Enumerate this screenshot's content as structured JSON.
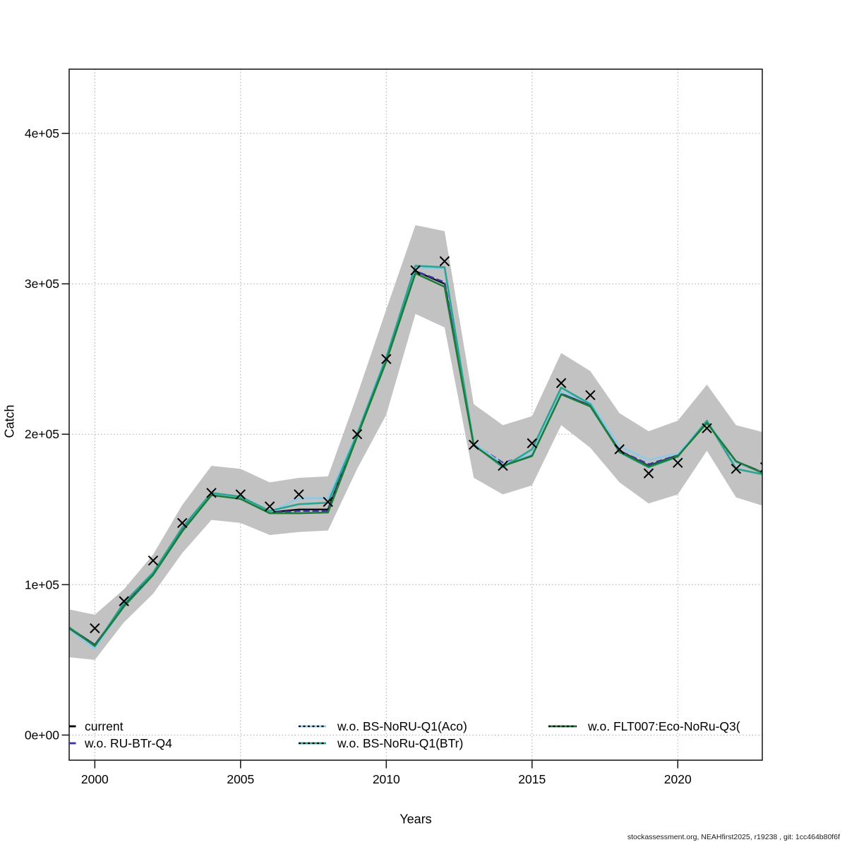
{
  "figure": {
    "ylabel": "Catch",
    "xlabel": "Years",
    "footer": "stockassessment.org, NEAHfirst2025, r19238 , git: 1cc464b80f6f",
    "background": "#ffffff"
  },
  "chart_data": {
    "type": "line",
    "title": "",
    "xlabel": "Years",
    "ylabel": "Catch",
    "xlim": [
      1999.12,
      2022.9
    ],
    "ylim": [
      -16700,
      442700
    ],
    "grid": true,
    "grid_color": "#a9a9a9",
    "band_color": "#c2c2c2",
    "box_color": "#1f1f1f",
    "xticks": [
      {
        "label": "2000",
        "value": 2000
      },
      {
        "label": "2005",
        "value": 2005
      },
      {
        "label": "2010",
        "value": 2010
      },
      {
        "label": "2015",
        "value": 2015
      },
      {
        "label": "2020",
        "value": 2020
      }
    ],
    "yticks": [
      {
        "label": "0e+00",
        "value": 0
      },
      {
        "label": "1e+05",
        "value": 100000
      },
      {
        "label": "2e+05",
        "value": 200000
      },
      {
        "label": "3e+05",
        "value": 300000
      },
      {
        "label": "4e+05",
        "value": 400000
      }
    ],
    "years": [
      1999,
      2000,
      2001,
      2002,
      2003,
      2004,
      2005,
      2006,
      2007,
      2008,
      2009,
      2010,
      2011,
      2012,
      2013,
      2014,
      2015,
      2016,
      2017,
      2018,
      2019,
      2020,
      2021,
      2022,
      2023
    ],
    "band": {
      "upper": [
        84000,
        80000,
        97000,
        120000,
        153000,
        179000,
        177000,
        168000,
        171000,
        172000,
        226000,
        283000,
        339000,
        335000,
        220000,
        206000,
        212000,
        254000,
        242000,
        214000,
        202000,
        209000,
        233000,
        206000,
        201000
      ],
      "lower": [
        52000,
        50000,
        75000,
        94000,
        121000,
        143000,
        141000,
        133000,
        135000,
        136000,
        177000,
        213000,
        280000,
        271000,
        171000,
        160000,
        166000,
        206000,
        191000,
        168000,
        154000,
        160000,
        189000,
        158000,
        152000
      ]
    },
    "obs": {
      "marker": "x",
      "color": "#000000",
      "years": [
        2000,
        2001,
        2002,
        2003,
        2004,
        2005,
        2006,
        2007,
        2008,
        2009,
        2010,
        2011,
        2012,
        2013,
        2014,
        2015,
        2016,
        2017,
        2018,
        2019,
        2020,
        2021,
        2022,
        2023
      ],
      "values": [
        71000,
        89000,
        116000,
        141000,
        161000,
        160000,
        152000,
        160000,
        155000,
        200000,
        250000,
        309000,
        315000,
        193000,
        179000,
        194000,
        234000,
        226000,
        190000,
        174000,
        181000,
        204000,
        177000,
        178000
      ]
    },
    "series": [
      {
        "label": "current",
        "color": "#000000",
        "sample": "solid",
        "values": [
          73000,
          60000,
          86000,
          107000,
          136000,
          160000,
          157500,
          148000,
          150000,
          150000,
          200000,
          249000,
          308500,
          300000,
          193000,
          180000,
          186000,
          227000,
          219000,
          189000,
          179000,
          186000,
          208000,
          182000,
          174000
        ]
      },
      {
        "label": "w.o. RU-BTr-Q4",
        "color": "#3a35a0",
        "sample": "solid",
        "values": [
          73000,
          60000,
          86000,
          107000,
          136000,
          160000,
          157500,
          148000,
          149000,
          149000,
          200000,
          249000,
          308500,
          301000,
          193500,
          181000,
          186000,
          227000,
          219000,
          189000,
          180000,
          186000,
          208000,
          181000,
          174000
        ]
      },
      {
        "label": "w.o. BS-NoRU-Q1(Aco)",
        "color": "#8ec9e8",
        "sample": "dashed",
        "values": [
          72000,
          57500,
          85500,
          106000,
          135500,
          160000,
          157500,
          148000,
          157500,
          157500,
          201000,
          252000,
          311000,
          310000,
          194000,
          180000,
          187000,
          228000,
          221000,
          192000,
          183000,
          187000,
          209000,
          181000,
          174000
        ]
      },
      {
        "label": "w.o. BS-NoRu-Q1(BTr)",
        "color": "#2ba491",
        "sample": "dashed",
        "values": [
          73500,
          59000,
          88000,
          108000,
          138000,
          161000,
          158500,
          149000,
          153500,
          154500,
          200000,
          251000,
          312000,
          311000,
          193000,
          178000,
          190000,
          231000,
          220000,
          188000,
          178000,
          185000,
          209000,
          177000,
          173000
        ]
      },
      {
        "label": "w.o. FLT007:Eco-NoRu-Q3(",
        "color": "#1d7c3a",
        "sample": "dashed",
        "values": [
          72500,
          59500,
          85500,
          106500,
          135500,
          159500,
          157000,
          147500,
          147500,
          148000,
          198500,
          248500,
          307000,
          298000,
          192500,
          179000,
          185500,
          226500,
          218500,
          188500,
          178500,
          185500,
          207500,
          182000,
          173500
        ]
      }
    ],
    "legend_position": "bottom-inside"
  }
}
